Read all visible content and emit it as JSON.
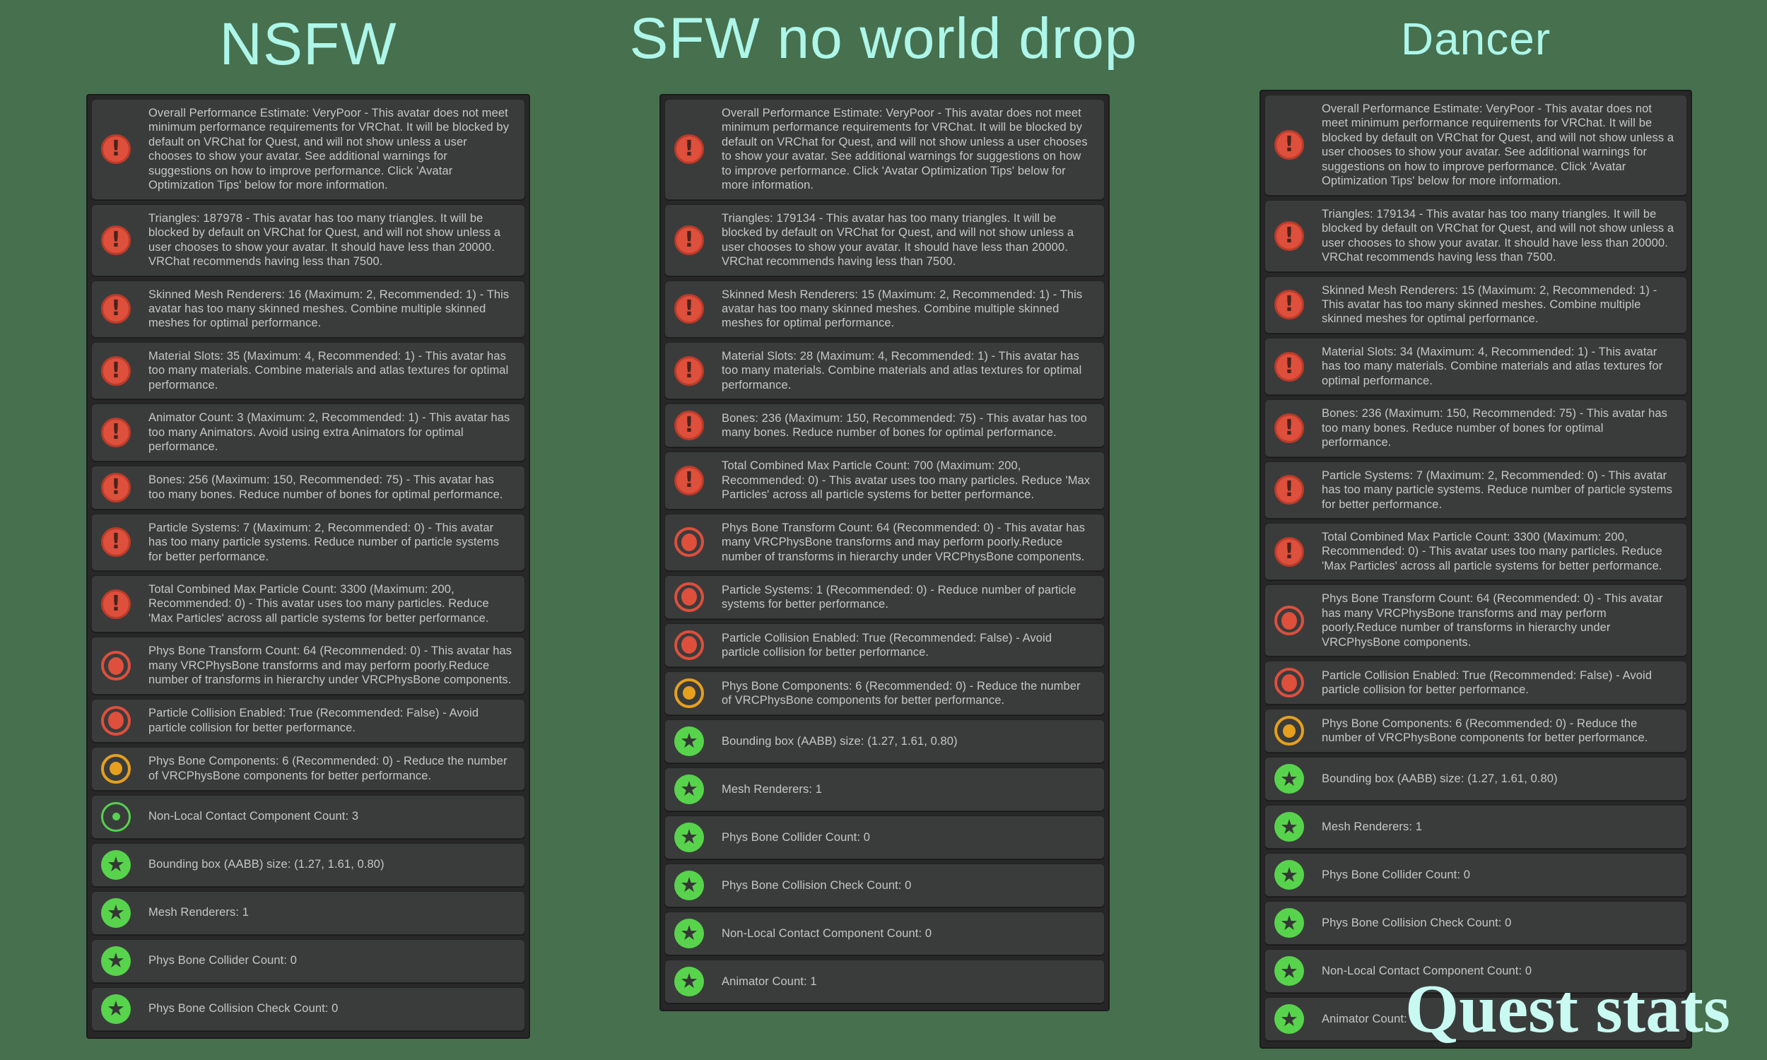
{
  "colors": {
    "background": "#47704E",
    "header_text": "#ADF6E9",
    "footer_text": "#C8FAF2",
    "row_background": "#3A3C3C",
    "row_text": "#C6C6C6",
    "error_red": "#DE4F3C",
    "warning_orange": "#E6A01E",
    "good_green": "#55D24F",
    "excellent_green": "#58D44C"
  },
  "headers": {
    "col1": "NSFW",
    "col2": "SFW no world drop",
    "col3": "Dancer",
    "footer": "Quest stats"
  },
  "icon_names": {
    "error": "error-icon",
    "verypoor": "verypoor-rank-icon",
    "medium": "medium-rank-icon",
    "good": "good-rank-icon",
    "excellent": "excellent-rank-icon"
  },
  "panels": [
    {
      "name": "NSFW",
      "items": [
        {
          "icon": "error",
          "text": "Overall Performance Estimate: VeryPoor - This avatar does not meet minimum performance requirements for VRChat. It will be blocked by default on VRChat for Quest, and will not show unless a user chooses to show your avatar. See additional warnings for suggestions on how to improve performance. Click 'Avatar Optimization Tips' below for more information."
        },
        {
          "icon": "error",
          "text": "Triangles: 187978 - This avatar has too many triangles. It will be blocked by default on VRChat for Quest, and will not show unless a user chooses to show your avatar. It should have less than 20000. VRChat recommends having less than 7500."
        },
        {
          "icon": "error",
          "text": "Skinned Mesh Renderers: 16 (Maximum: 2, Recommended: 1) - This avatar has too many skinned meshes. Combine multiple skinned meshes for optimal performance."
        },
        {
          "icon": "error",
          "text": "Material Slots: 35 (Maximum: 4, Recommended: 1) - This avatar has too many materials. Combine materials and atlas textures for optimal performance."
        },
        {
          "icon": "error",
          "text": "Animator Count: 3 (Maximum: 2, Recommended: 1) - This avatar has too many Animators. Avoid using extra Animators for optimal performance."
        },
        {
          "icon": "error",
          "text": "Bones: 256 (Maximum: 150, Recommended: 75) - This avatar has too many bones. Reduce number of bones for optimal performance."
        },
        {
          "icon": "error",
          "text": "Particle Systems: 7 (Maximum: 2, Recommended: 0) - This avatar has too many particle systems. Reduce number of particle systems for better performance."
        },
        {
          "icon": "error",
          "text": "Total Combined Max Particle Count: 3300 (Maximum: 200, Recommended: 0) - This avatar uses too many particles. Reduce 'Max Particles' across all particle systems for better performance."
        },
        {
          "icon": "verypoor",
          "text": "Phys Bone Transform Count: 64 (Recommended: 0) - This avatar has many VRCPhysBone transforms and may perform poorly.Reduce number of transforms in hierarchy under VRCPhysBone components."
        },
        {
          "icon": "verypoor",
          "text": "Particle Collision Enabled: True (Recommended: False) - Avoid particle collision for better performance."
        },
        {
          "icon": "medium",
          "text": "Phys Bone Components: 6 (Recommended: 0) - Reduce the number of VRCPhysBone components for better performance."
        },
        {
          "icon": "good",
          "text": "Non-Local Contact Component Count: 3"
        },
        {
          "icon": "excellent",
          "text": "Bounding box (AABB) size: (1.27, 1.61, 0.80)"
        },
        {
          "icon": "excellent",
          "text": "Mesh Renderers: 1"
        },
        {
          "icon": "excellent",
          "text": "Phys Bone Collider Count: 0"
        },
        {
          "icon": "excellent",
          "text": "Phys Bone Collision Check Count: 0"
        }
      ]
    },
    {
      "name": "SFW no world drop",
      "items": [
        {
          "icon": "error",
          "text": "Overall Performance Estimate: VeryPoor - This avatar does not meet minimum performance requirements for VRChat. It will be blocked by default on VRChat for Quest, and will not show unless a user chooses to show your avatar. See additional warnings for suggestions on how to improve performance. Click 'Avatar Optimization Tips' below for more information."
        },
        {
          "icon": "error",
          "text": "Triangles: 179134 - This avatar has too many triangles. It will be blocked by default on VRChat for Quest, and will not show unless a user chooses to show your avatar. It should have less than 20000. VRChat recommends having less than 7500."
        },
        {
          "icon": "error",
          "text": "Skinned Mesh Renderers: 15 (Maximum: 2, Recommended: 1) - This avatar has too many skinned meshes. Combine multiple skinned meshes for optimal performance."
        },
        {
          "icon": "error",
          "text": "Material Slots: 28 (Maximum: 4, Recommended: 1) - This avatar has too many materials. Combine materials and atlas textures for optimal performance."
        },
        {
          "icon": "error",
          "text": "Bones: 236 (Maximum: 150, Recommended: 75) - This avatar has too many bones. Reduce number of bones for optimal performance."
        },
        {
          "icon": "error",
          "text": "Total Combined Max Particle Count: 700 (Maximum: 200, Recommended: 0) - This avatar uses too many particles. Reduce 'Max Particles' across all particle systems for better performance."
        },
        {
          "icon": "verypoor",
          "text": "Phys Bone Transform Count: 64 (Recommended: 0) - This avatar has many VRCPhysBone transforms and may perform poorly.Reduce number of transforms in hierarchy under VRCPhysBone components."
        },
        {
          "icon": "verypoor",
          "text": "Particle Systems: 1 (Recommended: 0) - Reduce number of particle systems for better performance."
        },
        {
          "icon": "verypoor",
          "text": "Particle Collision Enabled: True (Recommended: False) - Avoid particle collision for better performance."
        },
        {
          "icon": "medium",
          "text": "Phys Bone Components: 6 (Recommended: 0) - Reduce the number of VRCPhysBone components for better performance."
        },
        {
          "icon": "excellent",
          "text": "Bounding box (AABB) size: (1.27, 1.61, 0.80)"
        },
        {
          "icon": "excellent",
          "text": "Mesh Renderers: 1"
        },
        {
          "icon": "excellent",
          "text": "Phys Bone Collider Count: 0"
        },
        {
          "icon": "excellent",
          "text": "Phys Bone Collision Check Count: 0"
        },
        {
          "icon": "excellent",
          "text": "Non-Local Contact Component Count: 0"
        },
        {
          "icon": "excellent",
          "text": "Animator Count: 1"
        }
      ]
    },
    {
      "name": "Dancer",
      "items": [
        {
          "icon": "error",
          "text": "Overall Performance Estimate: VeryPoor - This avatar does not meet minimum performance requirements for VRChat. It will be blocked by default on VRChat for Quest, and will not show unless a user chooses to show your avatar. See additional warnings for suggestions on how to improve performance. Click 'Avatar Optimization Tips' below for more information."
        },
        {
          "icon": "error",
          "text": "Triangles: 179134 - This avatar has too many triangles. It will be blocked by default on VRChat for Quest, and will not show unless a user chooses to show your avatar. It should have less than 20000. VRChat recommends having less than 7500."
        },
        {
          "icon": "error",
          "text": "Skinned Mesh Renderers: 15 (Maximum: 2, Recommended: 1) - This avatar has too many skinned meshes. Combine multiple skinned meshes for optimal performance."
        },
        {
          "icon": "error",
          "text": "Material Slots: 34 (Maximum: 4, Recommended: 1) - This avatar has too many materials. Combine materials and atlas textures for optimal performance."
        },
        {
          "icon": "error",
          "text": "Bones: 236 (Maximum: 150, Recommended: 75) - This avatar has too many bones. Reduce number of bones for optimal performance."
        },
        {
          "icon": "error",
          "text": "Particle Systems: 7 (Maximum: 2, Recommended: 0) - This avatar has too many particle systems. Reduce number of particle systems for better performance."
        },
        {
          "icon": "error",
          "text": "Total Combined Max Particle Count: 3300 (Maximum: 200, Recommended: 0) - This avatar uses too many particles. Reduce 'Max Particles' across all particle systems for better performance."
        },
        {
          "icon": "verypoor",
          "text": "Phys Bone Transform Count: 64 (Recommended: 0) - This avatar has many VRCPhysBone transforms and may perform poorly.Reduce number of transforms in hierarchy under VRCPhysBone components."
        },
        {
          "icon": "verypoor",
          "text": "Particle Collision Enabled: True (Recommended: False) - Avoid particle collision for better performance."
        },
        {
          "icon": "medium",
          "text": "Phys Bone Components: 6 (Recommended: 0) - Reduce the number of VRCPhysBone components for better performance."
        },
        {
          "icon": "excellent",
          "text": "Bounding box (AABB) size: (1.27, 1.61, 0.80)"
        },
        {
          "icon": "excellent",
          "text": "Mesh Renderers: 1"
        },
        {
          "icon": "excellent",
          "text": "Phys Bone Collider Count: 0"
        },
        {
          "icon": "excellent",
          "text": "Phys Bone Collision Check Count: 0"
        },
        {
          "icon": "excellent",
          "text": "Non-Local Contact Component Count: 0"
        },
        {
          "icon": "excellent",
          "text": "Animator Count: 1"
        }
      ]
    }
  ]
}
